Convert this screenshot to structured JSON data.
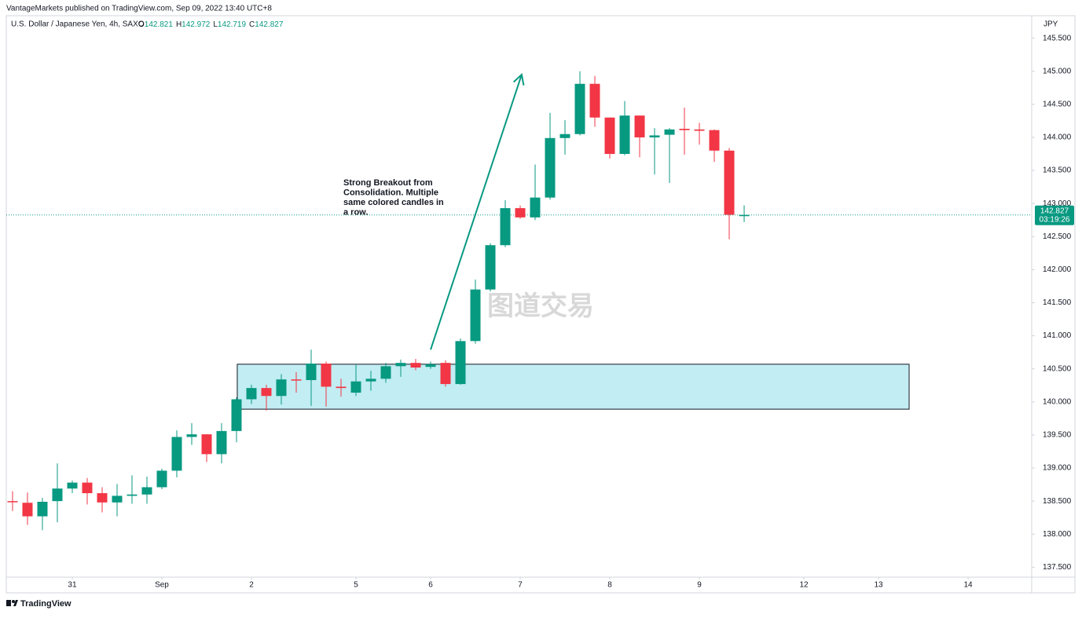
{
  "chart_data": {
    "type": "candlestick",
    "header": "VantageMarkets published on TradingView.com, Sep 09, 2022 13:40 UTC+8",
    "symbol": "U.S. Dollar / Japanese Yen, 4h, SAXO",
    "legend_values": [
      {
        "label": "O",
        "value": 142.821
      },
      {
        "label": "H",
        "value": 142.972
      },
      {
        "label": "L",
        "value": 142.719
      },
      {
        "label": "C",
        "value": 142.827
      }
    ],
    "y_axis_label": "JPY",
    "up_color": "#089981",
    "down_color": "#f23645",
    "candles": {
      "open": [
        138.5,
        138.475,
        138.27,
        138.5,
        138.69,
        138.78,
        138.62,
        138.48,
        138.58,
        138.6,
        138.71,
        138.96,
        139.47,
        139.51,
        139.21,
        139.56,
        140.04,
        140.21,
        140.09,
        140.34,
        140.33,
        140.58,
        140.23,
        140.14,
        140.31,
        140.35,
        140.54,
        140.59,
        140.53,
        140.59,
        140.27,
        140.92,
        141.7,
        142.37,
        142.93,
        142.79,
        143.09,
        143.99,
        144.05,
        144.81,
        144.3,
        143.75,
        144.33,
        144.0,
        144.04,
        144.13,
        144.12,
        144.11,
        143.8,
        142.821
      ],
      "high": [
        138.65,
        138.63,
        138.55,
        139.07,
        138.81,
        138.85,
        138.71,
        138.76,
        138.89,
        138.87,
        138.99,
        139.57,
        139.68,
        139.51,
        139.68,
        140.07,
        140.26,
        140.26,
        140.42,
        140.45,
        140.79,
        140.61,
        140.35,
        140.56,
        140.47,
        140.59,
        140.64,
        140.65,
        140.61,
        140.63,
        140.96,
        141.85,
        142.4,
        143.05,
        142.97,
        143.59,
        144.37,
        144.26,
        145.0,
        144.93,
        144.3,
        144.55,
        144.33,
        144.14,
        144.14,
        144.45,
        144.22,
        144.12,
        143.84,
        142.972
      ],
      "low": [
        138.35,
        138.14,
        138.06,
        138.18,
        138.62,
        138.45,
        138.33,
        138.27,
        138.46,
        138.46,
        138.68,
        138.86,
        139.35,
        139.09,
        139.07,
        139.39,
        139.97,
        139.87,
        139.96,
        140.14,
        139.94,
        139.93,
        140.08,
        140.09,
        140.17,
        140.29,
        140.38,
        140.48,
        140.5,
        140.23,
        140.26,
        140.88,
        141.67,
        142.34,
        142.77,
        142.75,
        143.06,
        143.74,
        144.03,
        144.16,
        143.68,
        143.73,
        143.7,
        143.44,
        143.31,
        143.74,
        143.89,
        143.63,
        142.46,
        142.719
      ],
      "close": [
        138.49,
        138.27,
        138.49,
        138.69,
        138.78,
        138.62,
        138.48,
        138.58,
        138.6,
        138.71,
        138.96,
        139.47,
        139.51,
        139.21,
        139.56,
        140.04,
        140.21,
        140.09,
        140.34,
        140.33,
        140.58,
        140.23,
        140.21,
        140.31,
        140.35,
        140.54,
        140.59,
        140.52,
        140.57,
        140.27,
        140.92,
        141.7,
        142.37,
        142.93,
        142.79,
        143.09,
        143.99,
        144.05,
        144.81,
        144.3,
        143.75,
        144.33,
        144.0,
        144.03,
        144.12,
        144.11,
        144.1,
        143.8,
        142.83,
        142.827
      ]
    },
    "xlim": [
      -0.42,
      68.26
    ],
    "xticks": [
      {
        "value": 4,
        "label": "31"
      },
      {
        "value": 10,
        "label": "Sep"
      },
      {
        "value": 16,
        "label": "2"
      },
      {
        "value": 23,
        "label": "5"
      },
      {
        "value": 28,
        "label": "6"
      },
      {
        "value": 34,
        "label": "7"
      },
      {
        "value": 40,
        "label": "8"
      },
      {
        "value": 46,
        "label": "9"
      },
      {
        "value": 53,
        "label": "12"
      },
      {
        "value": 58,
        "label": "13"
      },
      {
        "value": 64,
        "label": "14"
      }
    ],
    "ylim": [
      137.35,
      145.84
    ],
    "yticks": [
      {
        "value": 137.5,
        "label": "137.500"
      },
      {
        "value": 138,
        "label": "138.000"
      },
      {
        "value": 138.5,
        "label": "138.500"
      },
      {
        "value": 139,
        "label": "139.000"
      },
      {
        "value": 139.5,
        "label": "139.500"
      },
      {
        "value": 140,
        "label": "140.000"
      },
      {
        "value": 140.5,
        "label": "140.500"
      },
      {
        "value": 141,
        "label": "141.000"
      },
      {
        "value": 141.5,
        "label": "141.500"
      },
      {
        "value": 142,
        "label": "142.000"
      },
      {
        "value": 142.5,
        "label": "142.500"
      },
      {
        "value": 143,
        "label": "143.000"
      },
      {
        "value": 143.5,
        "label": "143.500"
      },
      {
        "value": 144,
        "label": "144.000"
      },
      {
        "value": 144.5,
        "label": "144.500"
      },
      {
        "value": 145,
        "label": "145.000"
      },
      {
        "value": 145.5,
        "label": "145.500"
      }
    ],
    "last_price": {
      "value": 142.827,
      "countdown": "03:19:26"
    },
    "zone": {
      "x": [
        15.05,
        60.05
      ],
      "y": [
        139.89,
        140.57
      ]
    },
    "arrow": {
      "from": [
        28,
        140.79
      ],
      "to": [
        34.1,
        144.95
      ]
    },
    "annotation": [
      "Strong Breakout from",
      "Consolidation. Multiple",
      "same colored candles in",
      "a row."
    ],
    "watermark": "图道交易",
    "footer": "TradingView"
  }
}
